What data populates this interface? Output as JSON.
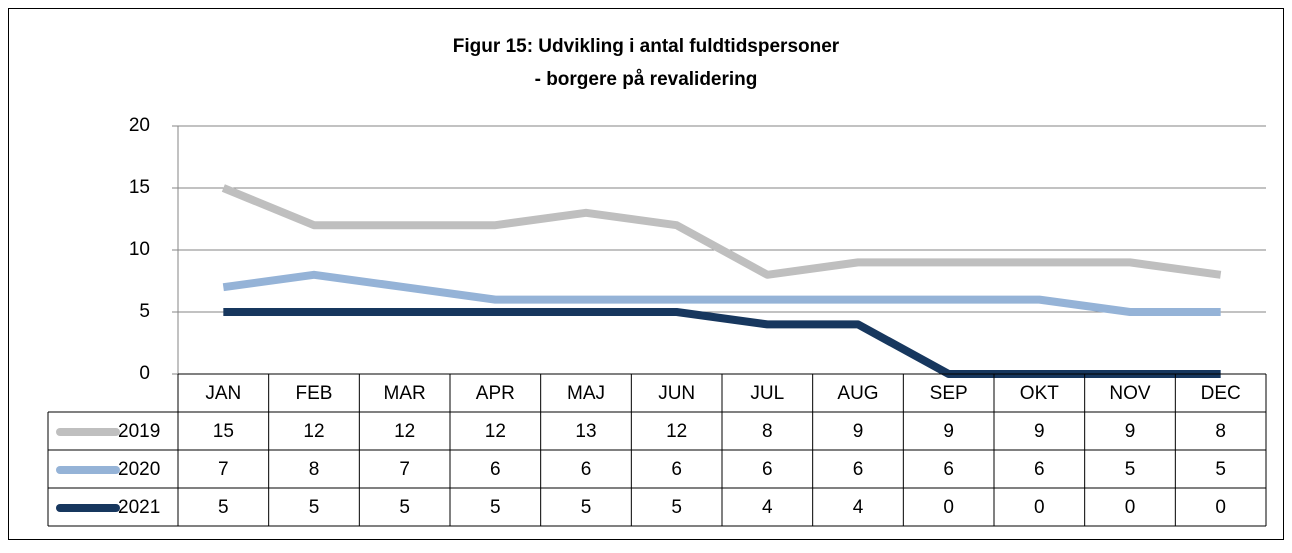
{
  "chart_data": {
    "type": "line",
    "title": [
      "Figur 15: Udvikling i antal fuldtidspersoner",
      "- borgere på revalidering"
    ],
    "categories": [
      "JAN",
      "FEB",
      "MAR",
      "APR",
      "MAJ",
      "JUN",
      "JUL",
      "AUG",
      "SEP",
      "OKT",
      "NOV",
      "DEC"
    ],
    "series": [
      {
        "name": "2019",
        "color": "#bfbfbf",
        "values": [
          15,
          12,
          12,
          12,
          13,
          12,
          8,
          9,
          9,
          9,
          9,
          8
        ]
      },
      {
        "name": "2020",
        "color": "#95b3d7",
        "values": [
          7,
          8,
          7,
          6,
          6,
          6,
          6,
          6,
          6,
          6,
          5,
          5
        ]
      },
      {
        "name": "2021",
        "color": "#17375e",
        "values": [
          5,
          5,
          5,
          5,
          5,
          5,
          4,
          4,
          0,
          0,
          0,
          0
        ]
      }
    ],
    "ylim": [
      0,
      20
    ],
    "yticks": [
      0,
      5,
      10,
      15,
      20
    ],
    "grid": true,
    "data_table": true
  }
}
